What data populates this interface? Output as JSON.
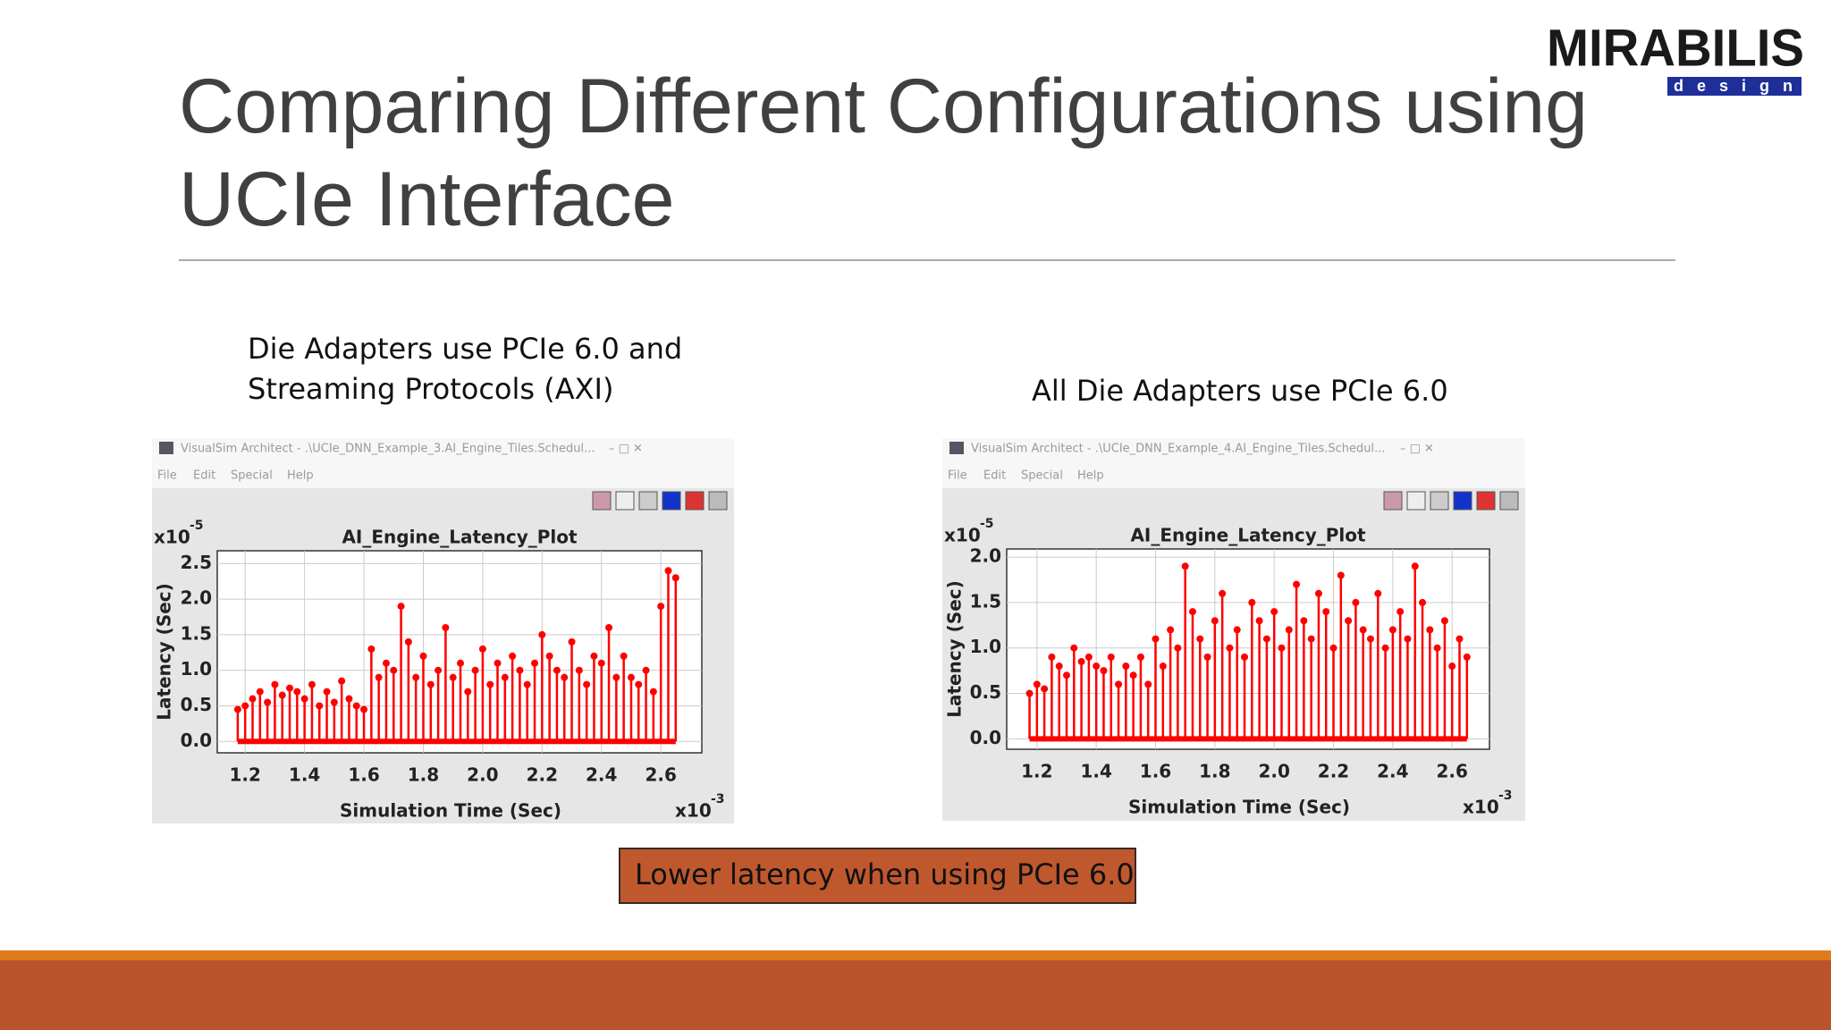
{
  "slide": {
    "title_lines": [
      "Comparing Different Configurations using",
      "UCIe Interface"
    ],
    "captions": [
      [
        "Die Adapters use PCIe 6.0 and",
        "Streaming Protocols (AXI)"
      ],
      [
        "All Die Adapters use PCIe 6.0"
      ]
    ],
    "note": "Lower latency when using PCIe 6.0",
    "logo": {
      "name": "MIRABILIS",
      "tagline": "design"
    }
  },
  "windows": [
    {
      "title": "VisualSim Architect - .\\UCIe_DNN_Example_3.AI_Engine_Tiles.Schedul...",
      "menu": [
        "File",
        "Edit",
        "Special",
        "Help"
      ]
    },
    {
      "title": "VisualSim Architect - .\\UCIe_DNN_Example_4.AI_Engine_Tiles.Schedul...",
      "menu": [
        "File",
        "Edit",
        "Special",
        "Help"
      ]
    }
  ],
  "chart_data": [
    {
      "type": "stem",
      "title": "AI_Engine_Latency_Plot",
      "x_label": "Simulation Time (Sec)",
      "y_label": "Latency (Sec)",
      "x_scale": {
        "base": "x10",
        "exponent": "-3"
      },
      "y_scale": {
        "base": "x10",
        "exponent": "-5"
      },
      "color": "#ff0000",
      "grid": true,
      "xlim": [
        1.106,
        2.738
      ],
      "ylim": [
        -0.16,
        2.68
      ],
      "xticks": [
        1.2,
        1.4,
        1.6,
        1.8,
        {
          "value": 2,
          "label": "2.0"
        },
        2.2,
        2.4,
        2.6
      ],
      "yticks": [
        {
          "value": 0,
          "label": "0.0"
        },
        0.5,
        {
          "value": 1,
          "label": "1.0"
        },
        1.5,
        {
          "value": 2,
          "label": "2.0"
        },
        2.5
      ],
      "x": [
        1.175,
        1.2,
        1.225,
        1.25,
        1.275,
        1.3,
        1.325,
        1.35,
        1.375,
        1.4,
        1.425,
        1.45,
        1.475,
        1.5,
        1.525,
        1.55,
        1.575,
        1.6,
        1.625,
        1.65,
        1.675,
        1.7,
        1.725,
        1.75,
        1.775,
        1.8,
        1.825,
        1.85,
        1.875,
        1.9,
        1.925,
        1.95,
        1.975,
        2.0,
        2.025,
        2.05,
        2.075,
        2.1,
        2.125,
        2.15,
        2.175,
        2.2,
        2.225,
        2.25,
        2.275,
        2.3,
        2.325,
        2.35,
        2.375,
        2.4,
        2.425,
        2.45,
        2.475,
        2.5,
        2.525,
        2.55,
        2.575,
        2.6,
        2.625,
        2.65
      ],
      "values": [
        0.45,
        0.5,
        0.6,
        0.7,
        0.55,
        0.8,
        0.65,
        0.75,
        0.7,
        0.6,
        0.8,
        0.5,
        0.7,
        0.55,
        0.85,
        0.6,
        0.5,
        0.45,
        1.3,
        0.9,
        1.1,
        1.0,
        1.9,
        1.4,
        0.9,
        1.2,
        0.8,
        1.0,
        1.6,
        0.9,
        1.1,
        0.7,
        1.0,
        1.3,
        0.8,
        1.1,
        0.9,
        1.2,
        1.0,
        0.8,
        1.1,
        1.5,
        1.2,
        1.0,
        0.9,
        1.4,
        1.0,
        0.8,
        1.2,
        1.1,
        1.6,
        0.9,
        1.2,
        0.9,
        0.8,
        1.0,
        0.7,
        1.9,
        2.4,
        2.3
      ]
    },
    {
      "type": "stem",
      "title": "AI_Engine_Latency_Plot",
      "x_label": "Simulation Time (Sec)",
      "y_label": "Latency (Sec)",
      "x_scale": {
        "base": "x10",
        "exponent": "-3"
      },
      "y_scale": {
        "base": "x10",
        "exponent": "-5"
      },
      "color": "#ff0000",
      "grid": true,
      "xlim": [
        1.098,
        2.726
      ],
      "ylim": [
        -0.115,
        2.09
      ],
      "xticks": [
        1.2,
        1.4,
        1.6,
        1.8,
        {
          "value": 2,
          "label": "2.0"
        },
        2.2,
        2.4,
        2.6
      ],
      "yticks": [
        {
          "value": 0,
          "label": "0.0"
        },
        0.5,
        {
          "value": 1,
          "label": "1.0"
        },
        1.5,
        {
          "value": 2,
          "label": "2.0"
        }
      ],
      "x": [
        1.175,
        1.2,
        1.225,
        1.25,
        1.275,
        1.3,
        1.325,
        1.35,
        1.375,
        1.4,
        1.425,
        1.45,
        1.475,
        1.5,
        1.525,
        1.55,
        1.575,
        1.6,
        1.625,
        1.65,
        1.675,
        1.7,
        1.725,
        1.75,
        1.775,
        1.8,
        1.825,
        1.85,
        1.875,
        1.9,
        1.925,
        1.95,
        1.975,
        2.0,
        2.025,
        2.05,
        2.075,
        2.1,
        2.125,
        2.15,
        2.175,
        2.2,
        2.225,
        2.25,
        2.275,
        2.3,
        2.325,
        2.35,
        2.375,
        2.4,
        2.425,
        2.45,
        2.475,
        2.5,
        2.525,
        2.55,
        2.575,
        2.6,
        2.625,
        2.65
      ],
      "values": [
        0.5,
        0.6,
        0.55,
        0.9,
        0.8,
        0.7,
        1.0,
        0.85,
        0.9,
        0.8,
        0.75,
        0.9,
        0.6,
        0.8,
        0.7,
        0.9,
        0.6,
        1.1,
        0.8,
        1.2,
        1.0,
        1.9,
        1.4,
        1.1,
        0.9,
        1.3,
        1.6,
        1.0,
        1.2,
        0.9,
        1.5,
        1.3,
        1.1,
        1.4,
        1.0,
        1.2,
        1.7,
        1.3,
        1.1,
        1.6,
        1.4,
        1.0,
        1.8,
        1.3,
        1.5,
        1.2,
        1.1,
        1.6,
        1.0,
        1.2,
        1.4,
        1.1,
        1.9,
        1.5,
        1.2,
        1.0,
        1.3,
        0.8,
        1.1,
        0.9
      ]
    }
  ]
}
